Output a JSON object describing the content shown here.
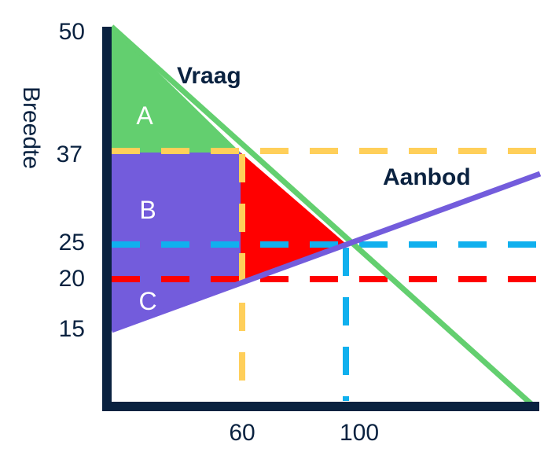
{
  "axis": {
    "ylabel": "Breedte"
  },
  "y_ticks": [
    "50",
    "37",
    "25",
    "20",
    "15"
  ],
  "x_ticks": [
    "60",
    "100"
  ],
  "curves": {
    "demand": "Vraag",
    "supply": "Aanbod"
  },
  "areas": {
    "a": "A",
    "b": "B",
    "c": "C"
  },
  "colors": {
    "axis": "#0a2240",
    "demand": "#63cf6f",
    "supply": "#735cdc",
    "surplus_triangle": "#ff0000",
    "line_37": "#ffcf5a",
    "line_25": "#10b0ee",
    "line_20": "#ff0000"
  }
}
